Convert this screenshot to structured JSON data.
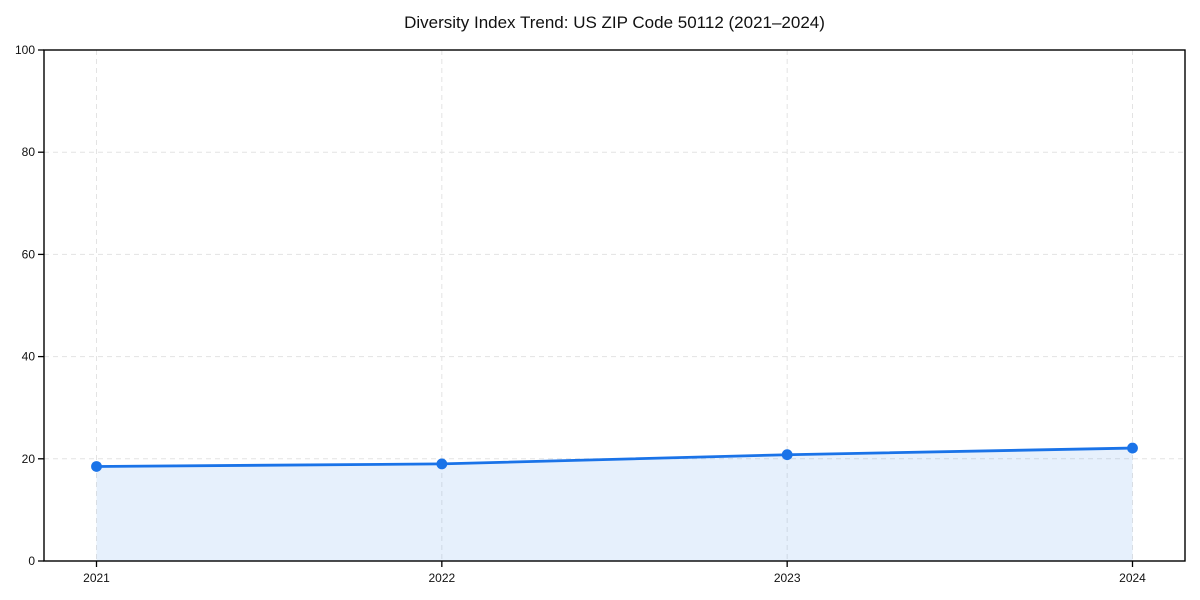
{
  "chart_data": {
    "type": "area",
    "title": "Diversity Index Trend: US ZIP Code 50112 (2021–2024)",
    "categories": [
      "2021",
      "2022",
      "2023",
      "2024"
    ],
    "series": [
      {
        "name": "Diversity Index",
        "values": [
          18.5,
          19.0,
          20.8,
          22.1
        ]
      }
    ],
    "xlabel": "",
    "ylabel": "",
    "ylim": [
      0,
      100
    ],
    "yticks": [
      0,
      20,
      40,
      60,
      80,
      100
    ],
    "grid": true,
    "grid_style": "dashed",
    "legend_position": "none",
    "colors": {
      "line": "#1a73e8",
      "marker": "#1a73e8",
      "fill": "#1a73e8",
      "fill_opacity": 0.11,
      "grid": "#e3e3e3",
      "frame": "#000000",
      "tick_text": "#111111",
      "background": "#ffffff"
    }
  }
}
